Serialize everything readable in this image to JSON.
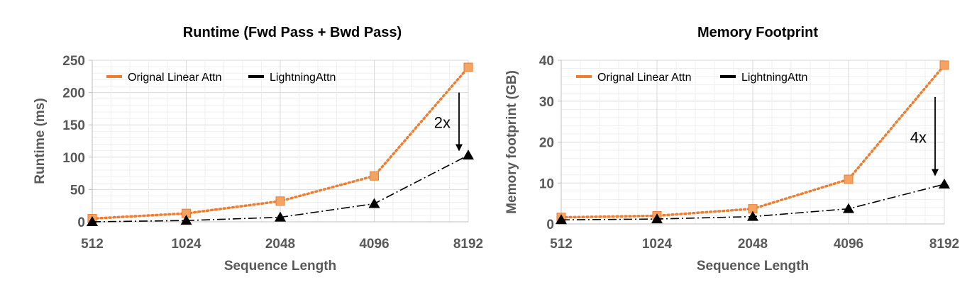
{
  "chart_data": [
    {
      "type": "line",
      "title": "Runtime (Fwd Pass + Bwd Pass)",
      "xlabel": "Sequence Length",
      "ylabel": "Runtime (ms)",
      "categories": [
        "512",
        "1024",
        "2048",
        "4096",
        "8192"
      ],
      "ylim": [
        0,
        250
      ],
      "yticks": [
        0,
        50,
        100,
        150,
        200,
        250
      ],
      "grid": true,
      "legend_position": "top-left",
      "series": [
        {
          "name": "Orignal Linear Attn",
          "values": [
            5,
            13,
            32,
            71,
            239
          ],
          "color": "#F4A460",
          "line_color": "#ED7D31",
          "marker": "square",
          "style": "dotted"
        },
        {
          "name": "LightningAttn",
          "values": [
            0,
            2,
            7,
            28,
            103
          ],
          "color": "#000000",
          "line_color": "#000000",
          "marker": "triangle",
          "style": "dashdot"
        }
      ],
      "annotation": {
        "text": "2x",
        "x": "8192",
        "y_from": 200,
        "y_to": 108
      }
    },
    {
      "type": "line",
      "title": "Memory Footprint",
      "xlabel": "Sequence Length",
      "ylabel": "Memory footprint (GB)",
      "categories": [
        "512",
        "1024",
        "2048",
        "4096",
        "8192"
      ],
      "ylim": [
        0,
        40
      ],
      "yticks": [
        0,
        10,
        20,
        30,
        40
      ],
      "grid": true,
      "legend_position": "top-left",
      "series": [
        {
          "name": "Orignal Linear Attn",
          "values": [
            1.6,
            2.0,
            3.7,
            10.9,
            38.8
          ],
          "color": "#F4A460",
          "line_color": "#ED7D31",
          "marker": "square",
          "style": "dotted"
        },
        {
          "name": "LightningAttn",
          "values": [
            1.0,
            1.2,
            1.8,
            3.7,
            9.7
          ],
          "color": "#000000",
          "line_color": "#000000",
          "marker": "triangle",
          "style": "dashdot"
        }
      ],
      "annotation": {
        "text": "4x",
        "x": "8192",
        "y_from": 31,
        "y_to": 11.5
      }
    }
  ]
}
